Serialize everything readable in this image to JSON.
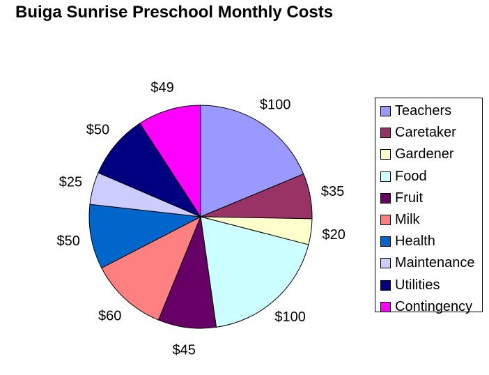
{
  "chart_data": {
    "type": "pie",
    "title": "Buiga Sunrise Preschool Monthly Costs",
    "categories": [
      "Teachers",
      "Caretaker",
      "Gardener",
      "Food",
      "Fruit",
      "Milk",
      "Health",
      "Maintenance",
      "Utilities",
      "Contingency"
    ],
    "values": [
      100,
      35,
      20,
      100,
      45,
      60,
      50,
      25,
      50,
      49
    ],
    "data_labels": [
      "$100",
      "$35",
      "$20",
      "$100",
      "$45",
      "$60",
      "$50",
      "$25",
      "$50",
      "$49"
    ],
    "colors": [
      "#9999ff",
      "#993366",
      "#ffffcc",
      "#ccffff",
      "#660066",
      "#ff8080",
      "#0066cc",
      "#ccccff",
      "#000080",
      "#ff00ff"
    ],
    "legend_position": "right",
    "start_angle": "12 o'clock",
    "direction": "clockwise"
  }
}
